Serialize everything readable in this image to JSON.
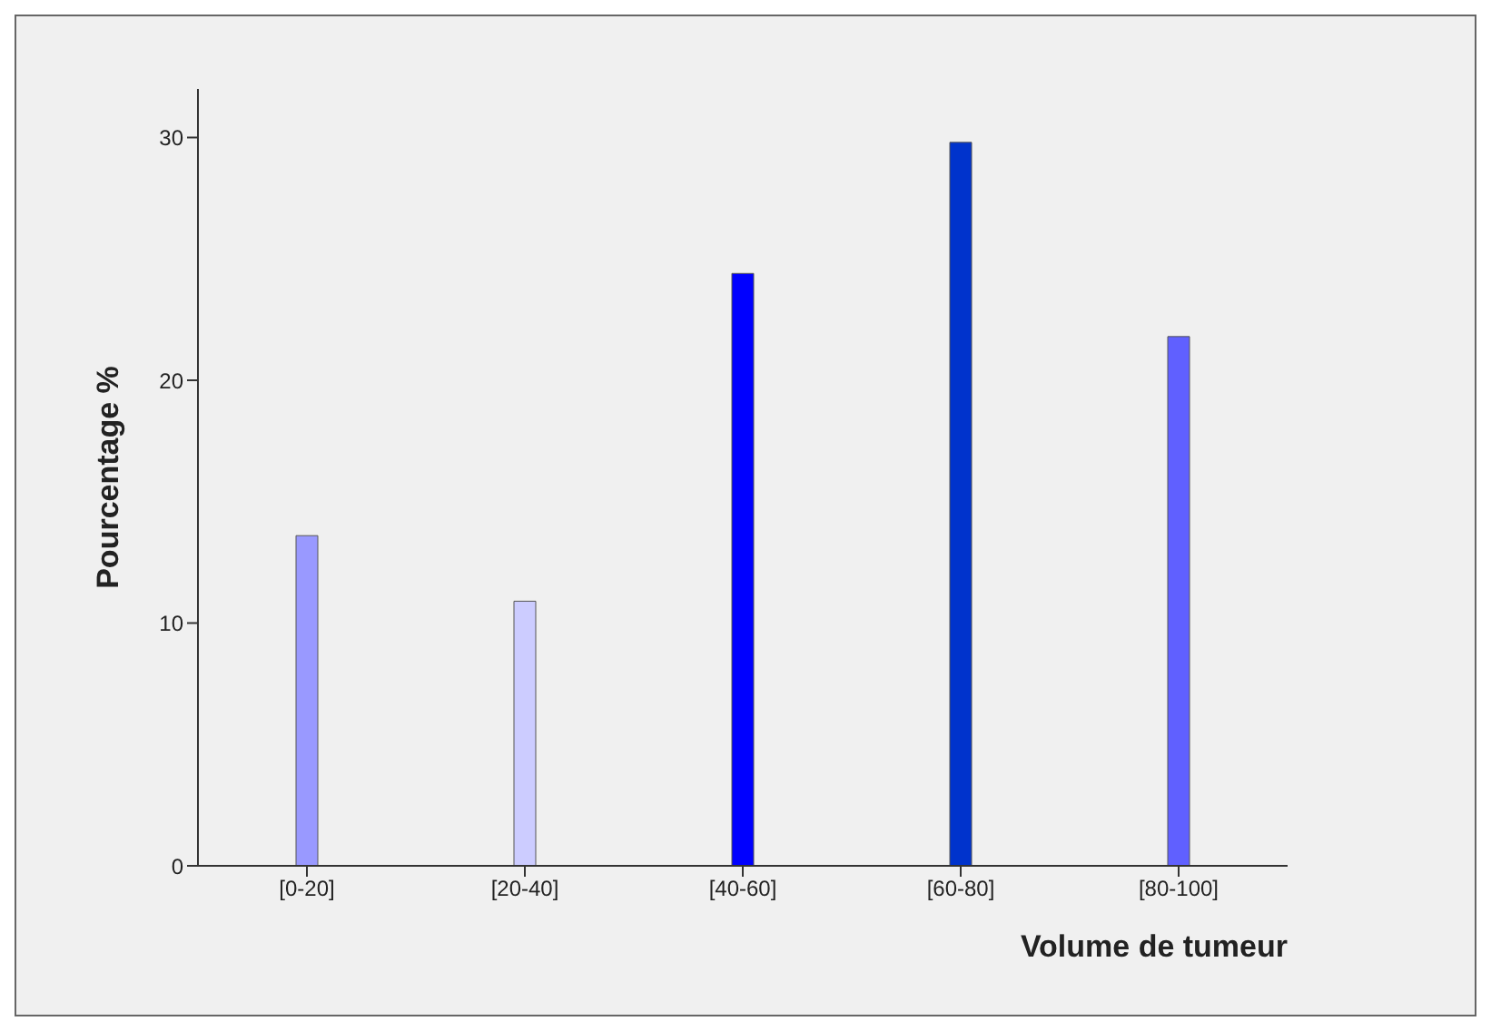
{
  "chart_data": {
    "type": "bar",
    "xlabel": "Volume de tumeur",
    "ylabel": "Pourcentage %",
    "categories": [
      "[0-20]",
      "[20-40]",
      "[40-60]",
      "[60-80]",
      "[80-100]"
    ],
    "values": [
      13.6,
      10.9,
      24.4,
      29.8,
      21.8
    ],
    "colors": [
      "#9999ff",
      "#ccccff",
      "#0000ff",
      "#0033cc",
      "#6060ff"
    ],
    "ylim": [
      0,
      32
    ],
    "yticks": [
      0,
      10,
      20,
      30
    ],
    "grid": false
  }
}
